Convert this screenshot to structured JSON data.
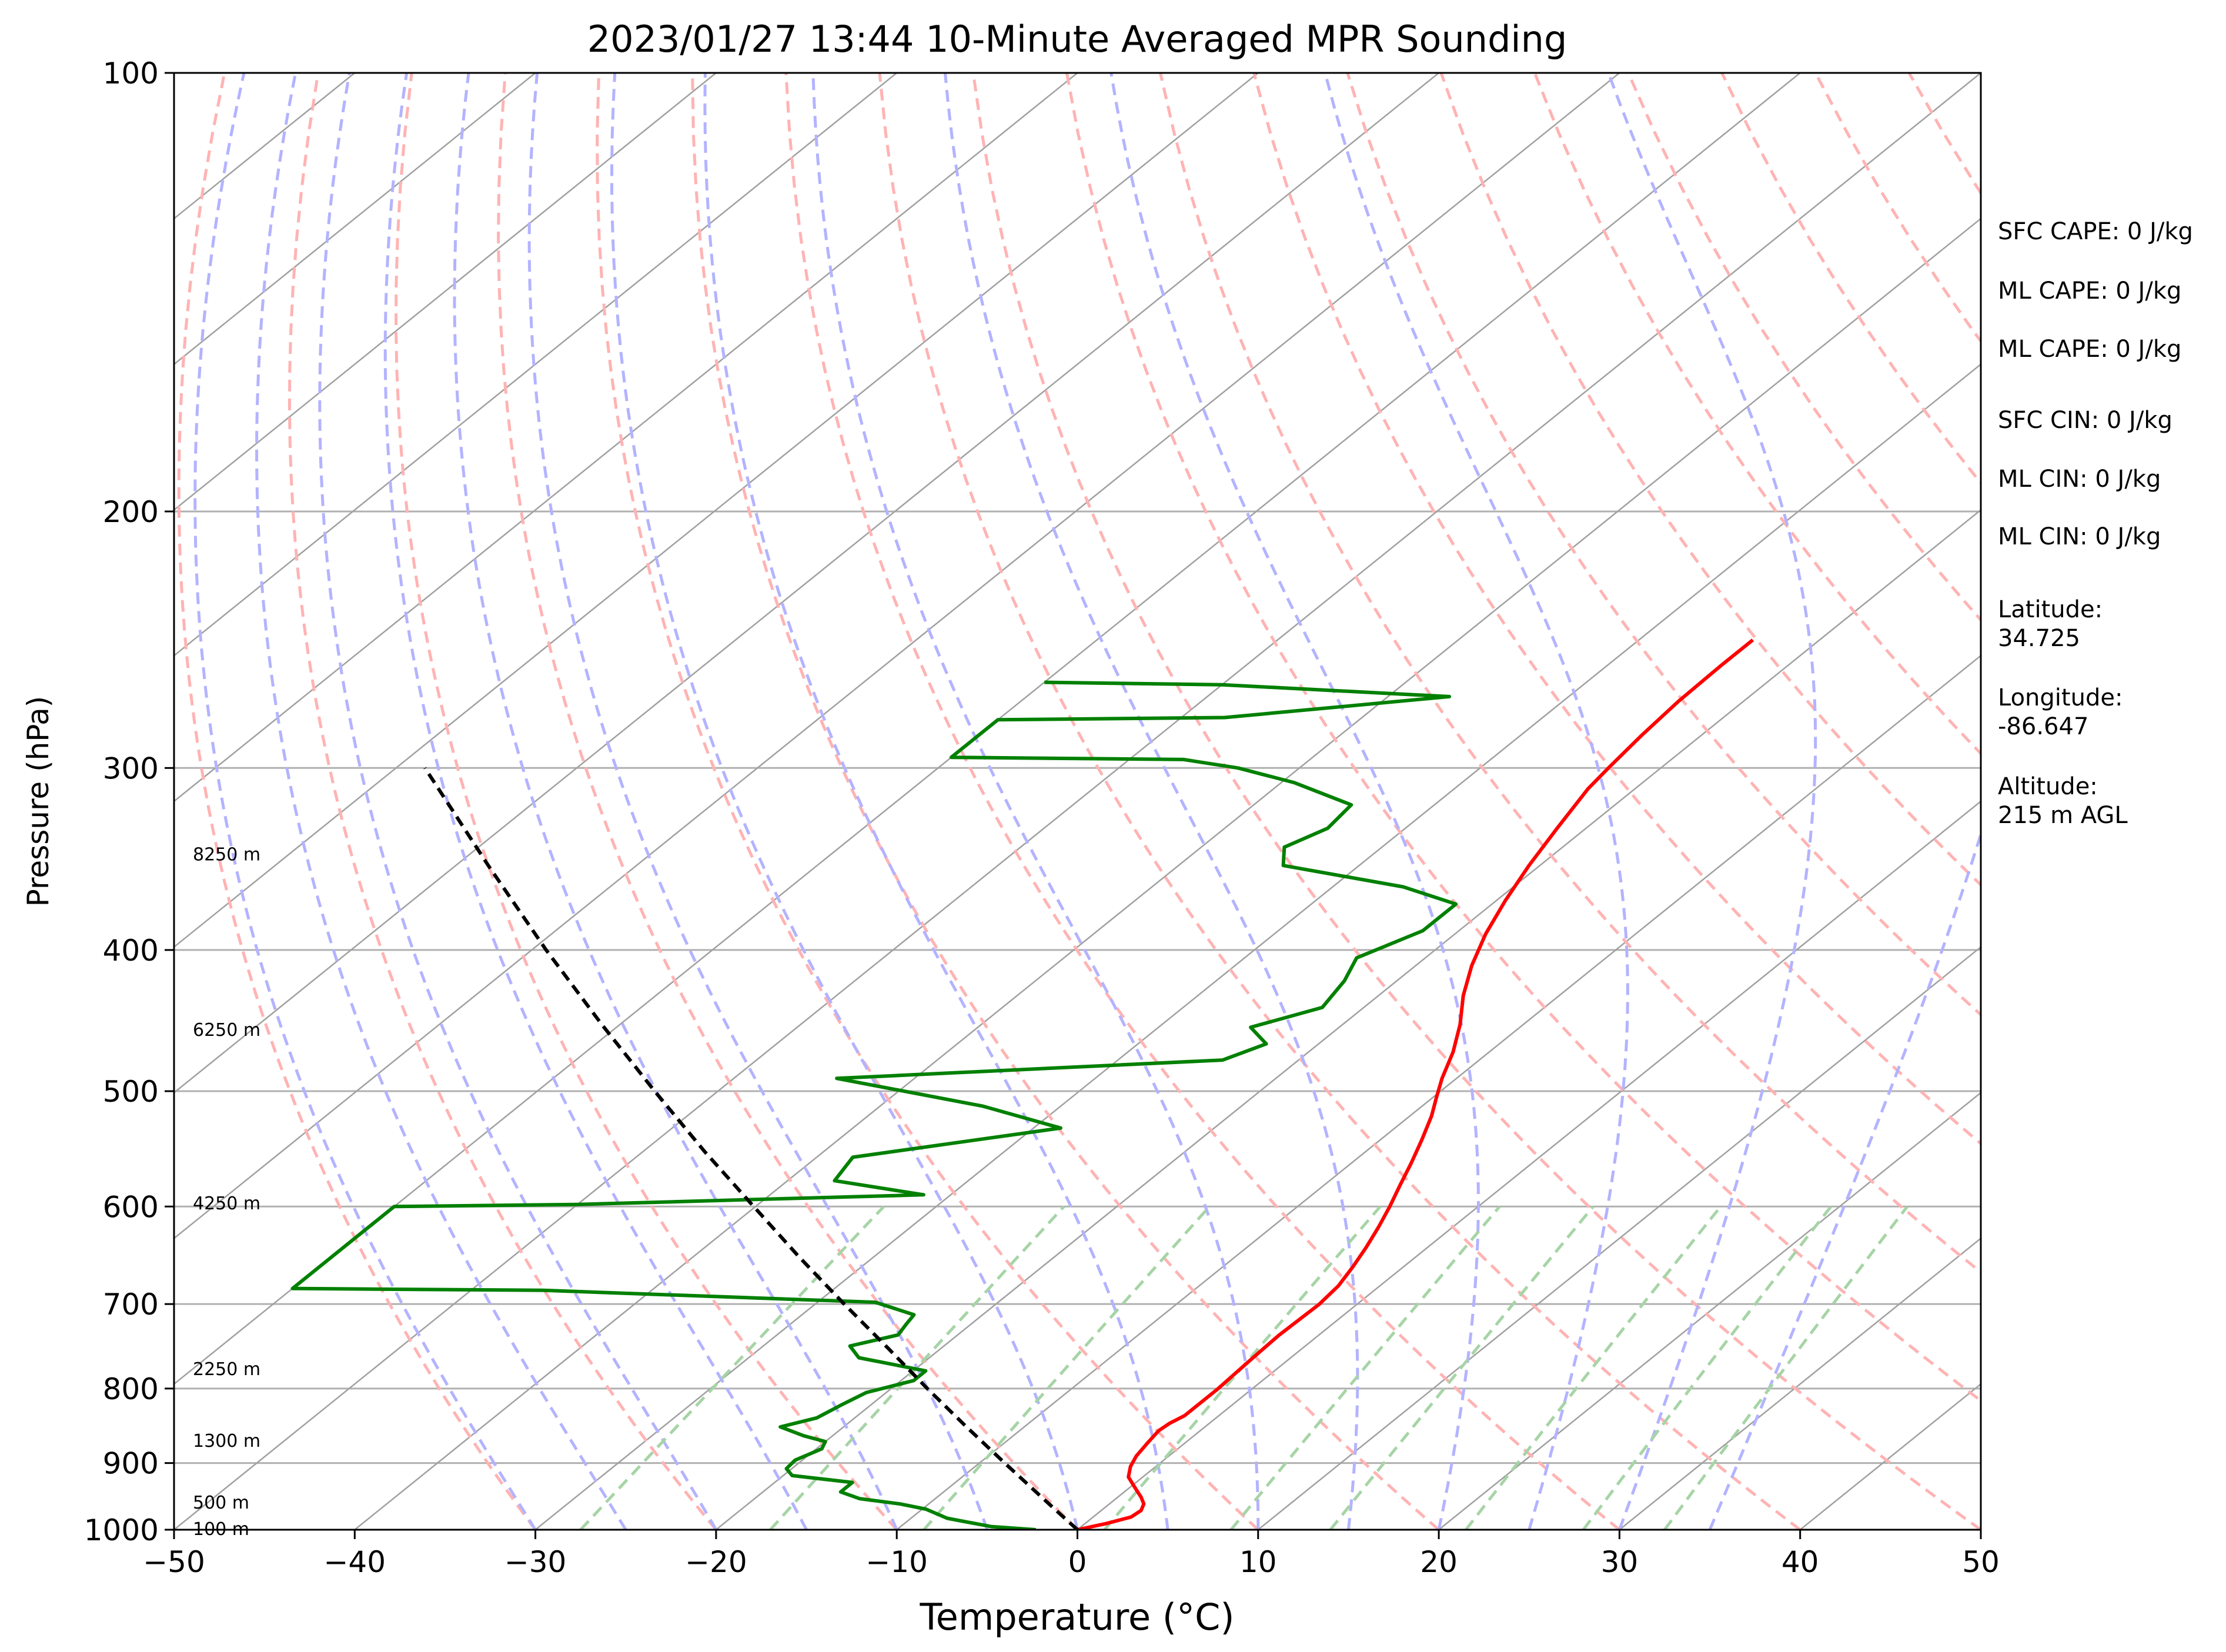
{
  "chart_data": {
    "type": "skew-t",
    "title": "2023/01/27 13:44 10-Minute Averaged MPR Sounding",
    "xlabel": "Temperature (°C)",
    "ylabel": "Pressure (hPa)",
    "xlim": [
      -50,
      50
    ],
    "ylim": [
      1000,
      100
    ],
    "y_scale": "log",
    "skew": 1.0,
    "x_ticks": [
      {
        "value": -50,
        "label": "−50"
      },
      {
        "value": -40,
        "label": "−40"
      },
      {
        "value": -30,
        "label": "−30"
      },
      {
        "value": -20,
        "label": "−20"
      },
      {
        "value": -10,
        "label": "−10"
      },
      {
        "value": 0,
        "label": "0"
      },
      {
        "value": 10,
        "label": "10"
      },
      {
        "value": 20,
        "label": "20"
      },
      {
        "value": 30,
        "label": "30"
      },
      {
        "value": 40,
        "label": "40"
      },
      {
        "value": 50,
        "label": "50"
      }
    ],
    "y_ticks": [
      {
        "value": 100,
        "label": "100"
      },
      {
        "value": 200,
        "label": "200"
      },
      {
        "value": 300,
        "label": "300"
      },
      {
        "value": 400,
        "label": "400"
      },
      {
        "value": 500,
        "label": "500"
      },
      {
        "value": 600,
        "label": "600"
      },
      {
        "value": 700,
        "label": "700"
      },
      {
        "value": 800,
        "label": "800"
      },
      {
        "value": 900,
        "label": "900"
      },
      {
        "value": 1000,
        "label": "1000"
      }
    ],
    "grid": true,
    "colors": {
      "temperature": "#ff0000",
      "dewpoint": "#008000",
      "parcel": "#000000",
      "isotherm": "#a0a0a0",
      "dry_adiabat": "#ffb3b3",
      "moist_adiabat": "#b3b3ff",
      "mixing_ratio": "#a6d4a6",
      "isobar": "#b0b0b0"
    },
    "isotherms_C": [
      -160,
      -150,
      -140,
      -130,
      -120,
      -110,
      -100,
      -90,
      -80,
      -70,
      -60,
      -50,
      -40,
      -30,
      -20,
      -10,
      0,
      10,
      20,
      30,
      40,
      50
    ],
    "dry_adiabats_C": [
      -30,
      -20,
      -10,
      0,
      10,
      20,
      30,
      40,
      50,
      60,
      70,
      80,
      90,
      100,
      110,
      120,
      130,
      140,
      150,
      160,
      170,
      180,
      190,
      200
    ],
    "moist_adiabats_C": [
      -30,
      -25,
      -20,
      -15,
      -10,
      -5,
      0,
      5,
      10,
      15,
      20,
      25,
      30,
      35
    ],
    "mixing_ratio_lines_C_at_1000": [
      -27.5,
      -17,
      -8.5,
      1.5,
      8.5,
      14,
      21.5,
      28,
      32.5
    ],
    "series": [
      {
        "points": [
          {
            "p": 1000,
            "t": 0.0
          },
          {
            "p": 990,
            "t": 1.2
          },
          {
            "p": 980,
            "t": 2.1
          },
          {
            "p": 970,
            "t": 2.2
          },
          {
            "p": 960,
            "t": 1.9
          },
          {
            "p": 950,
            "t": 1.3
          },
          {
            "p": 940,
            "t": 0.6
          },
          {
            "p": 930,
            "t": -0.1
          },
          {
            "p": 920,
            "t": -0.8
          },
          {
            "p": 905,
            "t": -1.4
          },
          {
            "p": 890,
            "t": -1.8
          },
          {
            "p": 870,
            "t": -2.1
          },
          {
            "p": 855,
            "t": -2.3
          },
          {
            "p": 845,
            "t": -2.2
          },
          {
            "p": 835,
            "t": -1.9
          },
          {
            "p": 820,
            "t": -1.9
          },
          {
            "p": 800,
            "t": -1.9
          },
          {
            "p": 780,
            "t": -2.0
          },
          {
            "p": 760,
            "t": -2.1
          },
          {
            "p": 735,
            "t": -2.2
          },
          {
            "p": 700,
            "t": -2.1
          },
          {
            "p": 680,
            "t": -2.3
          },
          {
            "p": 660,
            "t": -2.8
          },
          {
            "p": 640,
            "t": -3.4
          },
          {
            "p": 620,
            "t": -4.1
          },
          {
            "p": 600,
            "t": -4.9
          },
          {
            "p": 580,
            "t": -5.8
          },
          {
            "p": 560,
            "t": -6.7
          },
          {
            "p": 540,
            "t": -7.7
          },
          {
            "p": 520,
            "t": -8.8
          },
          {
            "p": 505,
            "t": -9.8
          },
          {
            "p": 490,
            "t": -10.8
          },
          {
            "p": 470,
            "t": -12.0
          },
          {
            "p": 450,
            "t": -13.5
          },
          {
            "p": 430,
            "t": -15.3
          },
          {
            "p": 410,
            "t": -16.9
          },
          {
            "p": 390,
            "t": -18.3
          },
          {
            "p": 370,
            "t": -19.5
          },
          {
            "p": 350,
            "t": -20.6
          },
          {
            "p": 330,
            "t": -21.6
          },
          {
            "p": 310,
            "t": -22.6
          },
          {
            "p": 300,
            "t": -22.9
          },
          {
            "p": 285,
            "t": -23.3
          },
          {
            "p": 270,
            "t": -23.6
          },
          {
            "p": 255,
            "t": -23.7
          },
          {
            "p": 245,
            "t": -23.7
          }
        ]
      },
      {
        "points": [
          {
            "p": 1000,
            "t": -2.3
          },
          {
            "p": 995,
            "t": -5.0
          },
          {
            "p": 982,
            "t": -8.0
          },
          {
            "p": 968,
            "t": -9.8
          },
          {
            "p": 960,
            "t": -11.6
          },
          {
            "p": 952,
            "t": -14.2
          },
          {
            "p": 942,
            "t": -15.7
          },
          {
            "p": 928,
            "t": -15.7
          },
          {
            "p": 918,
            "t": -19.5
          },
          {
            "p": 908,
            "t": -20.3
          },
          {
            "p": 896,
            "t": -20.4
          },
          {
            "p": 880,
            "t": -19.7
          },
          {
            "p": 870,
            "t": -20.0
          },
          {
            "p": 862,
            "t": -21.6
          },
          {
            "p": 850,
            "t": -23.5
          },
          {
            "p": 838,
            "t": -22.1
          },
          {
            "p": 820,
            "t": -21.6
          },
          {
            "p": 805,
            "t": -21.1
          },
          {
            "p": 790,
            "t": -19.3
          },
          {
            "p": 778,
            "t": -19.3
          },
          {
            "p": 762,
            "t": -23.9
          },
          {
            "p": 748,
            "t": -25.2
          },
          {
            "p": 735,
            "t": -23.3
          },
          {
            "p": 722,
            "t": -23.6
          },
          {
            "p": 712,
            "t": -23.8
          },
          {
            "p": 698,
            "t": -26.8
          },
          {
            "p": 685,
            "t": -46.0
          },
          {
            "p": 683,
            "t": -60.0
          },
          {
            "p": 600,
            "t": -60.0
          },
          {
            "p": 598,
            "t": -50.0
          },
          {
            "p": 589,
            "t": -31.5
          },
          {
            "p": 576,
            "t": -37.4
          },
          {
            "p": 555,
            "t": -38.0
          },
          {
            "p": 530,
            "t": -28.5
          },
          {
            "p": 512,
            "t": -34.3
          },
          {
            "p": 490,
            "t": -44.3
          },
          {
            "p": 476,
            "t": -24.2
          },
          {
            "p": 464,
            "t": -22.9
          },
          {
            "p": 452,
            "t": -24.9
          },
          {
            "p": 438,
            "t": -22.3
          },
          {
            "p": 420,
            "t": -22.9
          },
          {
            "p": 405,
            "t": -23.8
          },
          {
            "p": 388,
            "t": -22.0
          },
          {
            "p": 372,
            "t": -22.0
          },
          {
            "p": 362,
            "t": -26.1
          },
          {
            "p": 350,
            "t": -34.2
          },
          {
            "p": 340,
            "t": -35.4
          },
          {
            "p": 330,
            "t": -34.3
          },
          {
            "p": 318,
            "t": -34.6
          },
          {
            "p": 307,
            "t": -39.3
          },
          {
            "p": 300,
            "t": -43.4
          },
          {
            "p": 296,
            "t": -47.0
          },
          {
            "p": 295,
            "t": -60.0
          },
          {
            "p": 278,
            "t": -60.0
          },
          {
            "p": 277,
            "t": -47.6
          },
          {
            "p": 268,
            "t": -36.6
          },
          {
            "p": 263,
            "t": -50.0
          },
          {
            "p": 262,
            "t": -60.0
          }
        ]
      },
      {
        "points": [
          {
            "p": 1000,
            "t": 0.0
          },
          {
            "p": 970,
            "t": -2.5
          },
          {
            "p": 950,
            "t": -4.2
          },
          {
            "p": 900,
            "t": -8.6
          },
          {
            "p": 850,
            "t": -13.2
          },
          {
            "p": 800,
            "t": -18.0
          },
          {
            "p": 750,
            "t": -23.0
          },
          {
            "p": 700,
            "t": -28.4
          },
          {
            "p": 650,
            "t": -34.1
          },
          {
            "p": 600,
            "t": -40.1
          },
          {
            "p": 550,
            "t": -46.6
          },
          {
            "p": 500,
            "t": -53.5
          },
          {
            "p": 450,
            "t": -61.0
          },
          {
            "p": 400,
            "t": -69.2
          },
          {
            "p": 350,
            "t": -78.2
          },
          {
            "p": 300,
            "t": -88.4
          }
        ]
      }
    ],
    "height_labels": [
      {
        "p": 999,
        "text": "100 m"
      },
      {
        "p": 958,
        "text": "500 m"
      },
      {
        "p": 869,
        "text": "1300 m"
      },
      {
        "p": 776,
        "text": "2250 m"
      },
      {
        "p": 597,
        "text": "4250 m"
      },
      {
        "p": 454,
        "text": "6250 m"
      },
      {
        "p": 344,
        "text": "8250 m"
      }
    ]
  },
  "info_panel": {
    "lines": [
      "SFC CAPE: 0 J/kg",
      "ML CAPE: 0 J/kg",
      "ML CAPE: 0 J/kg",
      "SFC CIN: 0 J/kg",
      "ML CIN: 0 J/kg",
      "ML CIN: 0 J/kg",
      "Latitude:\n34.725",
      "Longitude:\n-86.647",
      "Altitude:\n215 m AGL"
    ]
  }
}
